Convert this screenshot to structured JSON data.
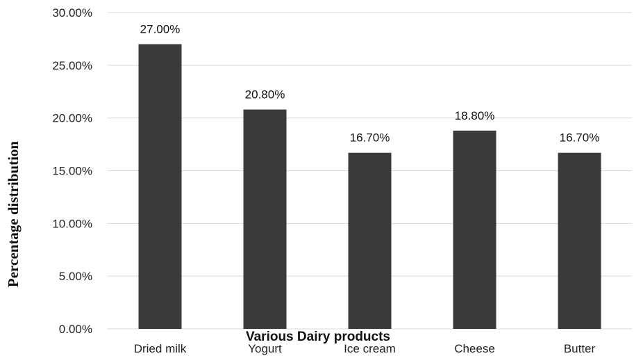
{
  "chart_data": {
    "type": "bar",
    "categories": [
      "Dried milk",
      "Yogurt",
      "Ice cream",
      "Cheese",
      "Butter"
    ],
    "values": [
      27.0,
      20.8,
      16.7,
      18.8,
      16.7
    ],
    "data_labels": [
      "27.00%",
      "20.80%",
      "16.70%",
      "18.80%",
      "16.70%"
    ],
    "title": "",
    "xlabel": "Various Dairy products",
    "ylabel": "Percentage distribution",
    "ylim": [
      0,
      30
    ],
    "yticks": [
      "0.00%",
      "5.00%",
      "10.00%",
      "15.00%",
      "20.00%",
      "25.00%",
      "30.00%"
    ],
    "ytick_values": [
      0,
      5,
      10,
      15,
      20,
      25,
      30
    ],
    "grid": true,
    "legend": "none",
    "bar_color": "#3a3a3a",
    "grid_color": "#d9d9d9"
  }
}
